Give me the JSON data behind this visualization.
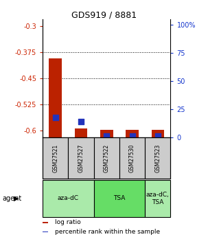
{
  "title": "GDS919 / 8881",
  "samples": [
    "GSM27521",
    "GSM27527",
    "GSM27522",
    "GSM27530",
    "GSM27523"
  ],
  "log_ratios": [
    -0.393,
    -0.595,
    -0.598,
    -0.598,
    -0.598
  ],
  "percentile_ranks": [
    18.0,
    14.0,
    1.0,
    1.0,
    1.0
  ],
  "agent_groups": [
    {
      "label": "aza-dC",
      "start": 0,
      "end": 2,
      "color": "#aaeaaa"
    },
    {
      "label": "TSA",
      "start": 2,
      "end": 4,
      "color": "#66dd66"
    },
    {
      "label": "aza-dC,\nTSA",
      "start": 4,
      "end": 5,
      "color": "#aaeaaa"
    }
  ],
  "ylim_left": [
    -0.62,
    -0.28
  ],
  "ylim_right": [
    0,
    105
  ],
  "yticks_left": [
    -0.6,
    -0.525,
    -0.45,
    -0.375,
    -0.3
  ],
  "yticks_right": [
    0,
    25,
    50,
    75,
    100
  ],
  "ytick_labels_left": [
    "-0.6",
    "-0.525",
    "-0.45",
    "-0.375",
    "-0.3"
  ],
  "ytick_labels_right": [
    "0",
    "25",
    "50",
    "75",
    "100%"
  ],
  "bar_color": "#bb2200",
  "dot_color": "#2233bb",
  "grid_color": "#000000",
  "bg_color": "#ffffff",
  "sample_box_color": "#cccccc",
  "left_tick_color": "#cc2200",
  "right_tick_color": "#1133cc",
  "bar_width": 0.5,
  "dot_size": 30,
  "legend_items": [
    {
      "color": "#bb2200",
      "label": "log ratio"
    },
    {
      "color": "#2233bb",
      "label": "percentile rank within the sample"
    }
  ]
}
